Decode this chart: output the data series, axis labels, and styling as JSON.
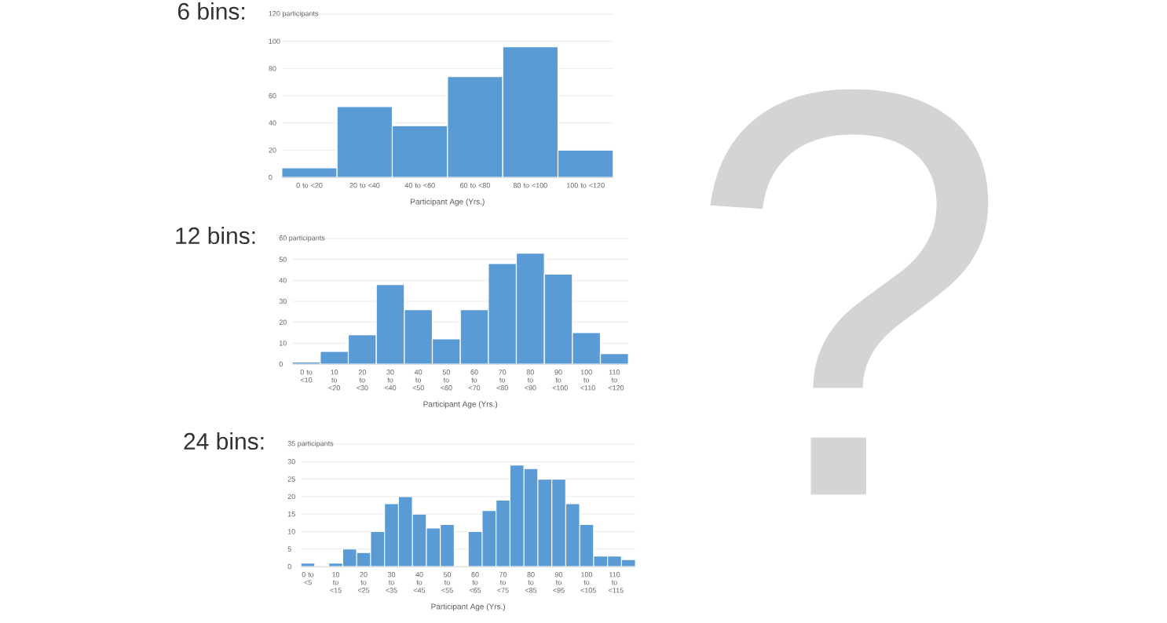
{
  "chart_data": [
    {
      "type": "bar",
      "title": "6 bins:",
      "xlabel": "Participant Age (Yrs.)",
      "color": "#5b9bd5",
      "grid": "y",
      "categories": [
        "0 to <20",
        "20 to <40",
        "40 to <60",
        "60 to <80",
        "80 to <100",
        "100 to <120"
      ],
      "values": [
        7,
        52,
        38,
        74,
        96,
        20
      ],
      "ylim": [
        0,
        120
      ],
      "yticks": [
        0,
        20,
        40,
        60,
        80,
        100,
        {
          "value": 120,
          "label": "120 participants"
        }
      ]
    },
    {
      "type": "bar",
      "title": "12 bins:",
      "xlabel": "Participant Age (Yrs.)",
      "color": "#5b9bd5",
      "grid": "y",
      "categories": [
        "0 to <10",
        "10 to <20",
        "20 to <30",
        "30 to <40",
        "40 to <50",
        "50 to <60",
        "60 to <70",
        "70 to <80",
        "80 to <90",
        "90 to <100",
        "100 to <110",
        "110 to <120"
      ],
      "values": [
        1,
        6,
        14,
        38,
        26,
        12,
        26,
        48,
        53,
        43,
        15,
        5
      ],
      "ylim": [
        0,
        60
      ],
      "yticks": [
        0,
        10,
        20,
        30,
        40,
        50,
        {
          "value": 60,
          "label": "60 participants"
        }
      ]
    },
    {
      "type": "bar",
      "title": "24 bins:",
      "xlabel": "Participant Age (Yrs.)",
      "color": "#5b9bd5",
      "grid": "y",
      "categories": [
        "0 to <5",
        null,
        "10 to <15",
        null,
        "20 to <25",
        null,
        "30 to <35",
        null,
        "40 to <45",
        null,
        "50 to <55",
        null,
        "60 to <65",
        null,
        "70 to <75",
        null,
        "80 to <85",
        null,
        "90 to <95",
        null,
        "100 to <105",
        null,
        "110 to <115",
        null
      ],
      "values": [
        1,
        0,
        1,
        5,
        4,
        10,
        18,
        20,
        15,
        11,
        12,
        0,
        10,
        16,
        19,
        29,
        28,
        25,
        25,
        18,
        12,
        3,
        3,
        2
      ],
      "ylim": [
        0,
        35
      ],
      "yticks": [
        0,
        5,
        10,
        15,
        20,
        25,
        30,
        {
          "value": 35,
          "label": "35 participants"
        }
      ]
    },
    {
      "type": "other",
      "title": "?",
      "color": "#d4d4d4"
    }
  ]
}
